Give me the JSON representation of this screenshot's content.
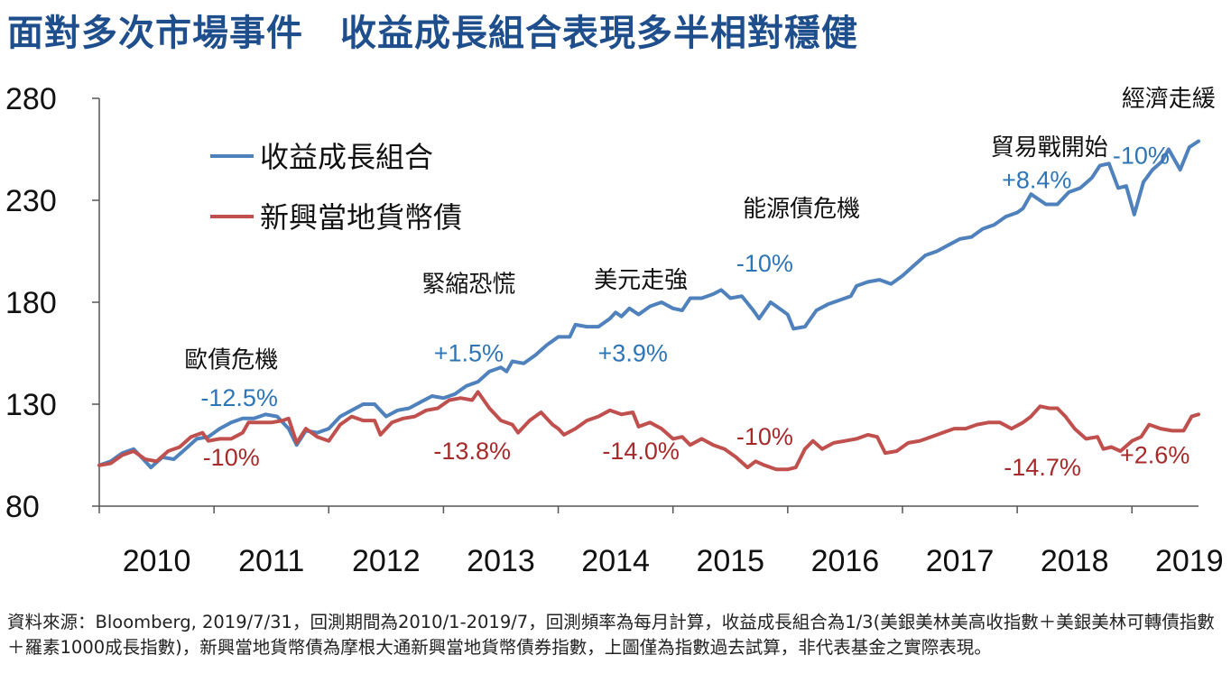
{
  "title": "面對多次市場事件　收益成長組合表現多半相對穩健",
  "footnote": "資料來源：Bloomberg, 2019/7/31，回測期間為2010/1-2019/7，回測頻率為每月計算，收益成長組合為1/3(美銀美林美高收指數＋美銀美林可轉債指數＋羅素1000成長指數)，新興當地貨幣債為摩根大通新興當地貨幣債券指數，上圖僅為指數過去試算，非代表基金之實際表現。",
  "chart_data": {
    "type": "line",
    "title": "面對多次市場事件　收益成長組合表現多半相對穩健",
    "xlabel": "",
    "ylabel": "",
    "xlim": [
      2010.0,
      2019.58
    ],
    "ylim": [
      80,
      280
    ],
    "yticks": [
      280,
      230,
      180,
      130,
      80
    ],
    "xticks": [
      "2010",
      "2011",
      "2012",
      "2013",
      "2014",
      "2015",
      "2016",
      "2017",
      "2018",
      "2019"
    ],
    "grid": false,
    "legend_position": "top-left",
    "series": [
      {
        "name": "收益成長組合",
        "color": "#4f81bd",
        "points": [
          [
            2010.0,
            100
          ],
          [
            2010.1,
            102
          ],
          [
            2010.2,
            106
          ],
          [
            2010.3,
            108
          ],
          [
            2010.4,
            102
          ],
          [
            2010.45,
            99
          ],
          [
            2010.55,
            104
          ],
          [
            2010.65,
            103
          ],
          [
            2010.75,
            108
          ],
          [
            2010.85,
            113
          ],
          [
            2010.95,
            114
          ],
          [
            2011.05,
            118
          ],
          [
            2011.15,
            121
          ],
          [
            2011.25,
            123
          ],
          [
            2011.35,
            123
          ],
          [
            2011.45,
            125
          ],
          [
            2011.55,
            124
          ],
          [
            2011.65,
            118
          ],
          [
            2011.72,
            110
          ],
          [
            2011.8,
            117
          ],
          [
            2011.9,
            116
          ],
          [
            2012.0,
            118
          ],
          [
            2012.1,
            124
          ],
          [
            2012.2,
            127
          ],
          [
            2012.3,
            130
          ],
          [
            2012.4,
            130
          ],
          [
            2012.5,
            124
          ],
          [
            2012.6,
            127
          ],
          [
            2012.7,
            128
          ],
          [
            2012.8,
            131
          ],
          [
            2012.9,
            134
          ],
          [
            2013.0,
            133
          ],
          [
            2013.1,
            135
          ],
          [
            2013.2,
            139
          ],
          [
            2013.3,
            141
          ],
          [
            2013.4,
            146
          ],
          [
            2013.5,
            148
          ],
          [
            2013.55,
            146
          ],
          [
            2013.6,
            151
          ],
          [
            2013.7,
            150
          ],
          [
            2013.8,
            154
          ],
          [
            2013.9,
            159
          ],
          [
            2014.0,
            163
          ],
          [
            2014.1,
            163
          ],
          [
            2014.15,
            169
          ],
          [
            2014.25,
            168
          ],
          [
            2014.35,
            168
          ],
          [
            2014.45,
            172
          ],
          [
            2014.5,
            175
          ],
          [
            2014.55,
            173
          ],
          [
            2014.62,
            177
          ],
          [
            2014.7,
            174
          ],
          [
            2014.8,
            178
          ],
          [
            2014.9,
            180
          ],
          [
            2015.0,
            177
          ],
          [
            2015.08,
            176
          ],
          [
            2015.15,
            182
          ],
          [
            2015.25,
            182
          ],
          [
            2015.35,
            184
          ],
          [
            2015.42,
            186
          ],
          [
            2015.5,
            182
          ],
          [
            2015.6,
            183
          ],
          [
            2015.7,
            176
          ],
          [
            2015.75,
            172
          ],
          [
            2015.85,
            180
          ],
          [
            2015.95,
            176
          ],
          [
            2016.0,
            174
          ],
          [
            2016.05,
            167
          ],
          [
            2016.15,
            168
          ],
          [
            2016.25,
            176
          ],
          [
            2016.35,
            179
          ],
          [
            2016.45,
            181
          ],
          [
            2016.55,
            183
          ],
          [
            2016.6,
            188
          ],
          [
            2016.7,
            190
          ],
          [
            2016.8,
            191
          ],
          [
            2016.9,
            189
          ],
          [
            2017.0,
            193
          ],
          [
            2017.1,
            198
          ],
          [
            2017.2,
            203
          ],
          [
            2017.3,
            205
          ],
          [
            2017.4,
            208
          ],
          [
            2017.5,
            211
          ],
          [
            2017.6,
            212
          ],
          [
            2017.7,
            216
          ],
          [
            2017.8,
            218
          ],
          [
            2017.9,
            222
          ],
          [
            2018.0,
            224
          ],
          [
            2018.05,
            226
          ],
          [
            2018.12,
            233
          ],
          [
            2018.25,
            228
          ],
          [
            2018.35,
            228
          ],
          [
            2018.45,
            234
          ],
          [
            2018.55,
            236
          ],
          [
            2018.65,
            241
          ],
          [
            2018.72,
            247
          ],
          [
            2018.8,
            248
          ],
          [
            2018.88,
            236
          ],
          [
            2018.95,
            237
          ],
          [
            2019.02,
            223
          ],
          [
            2019.1,
            239
          ],
          [
            2019.18,
            245
          ],
          [
            2019.26,
            249
          ],
          [
            2019.32,
            255
          ],
          [
            2019.42,
            245
          ],
          [
            2019.5,
            256
          ],
          [
            2019.58,
            259
          ]
        ]
      },
      {
        "name": "新興當地貨幣債",
        "color": "#c0504d",
        "points": [
          [
            2010.0,
            100
          ],
          [
            2010.1,
            101
          ],
          [
            2010.2,
            105
          ],
          [
            2010.3,
            107
          ],
          [
            2010.4,
            103
          ],
          [
            2010.5,
            102
          ],
          [
            2010.6,
            107
          ],
          [
            2010.7,
            109
          ],
          [
            2010.8,
            114
          ],
          [
            2010.9,
            116
          ],
          [
            2010.95,
            112
          ],
          [
            2011.05,
            113
          ],
          [
            2011.15,
            113
          ],
          [
            2011.25,
            116
          ],
          [
            2011.3,
            121
          ],
          [
            2011.4,
            121
          ],
          [
            2011.5,
            121
          ],
          [
            2011.6,
            122
          ],
          [
            2011.65,
            123
          ],
          [
            2011.72,
            111
          ],
          [
            2011.8,
            118
          ],
          [
            2011.9,
            114
          ],
          [
            2012.0,
            112
          ],
          [
            2012.1,
            120
          ],
          [
            2012.2,
            124
          ],
          [
            2012.3,
            122
          ],
          [
            2012.4,
            122
          ],
          [
            2012.45,
            115
          ],
          [
            2012.55,
            121
          ],
          [
            2012.65,
            123
          ],
          [
            2012.75,
            124
          ],
          [
            2012.85,
            127
          ],
          [
            2012.95,
            128
          ],
          [
            2013.05,
            132
          ],
          [
            2013.15,
            133
          ],
          [
            2013.25,
            132
          ],
          [
            2013.3,
            136
          ],
          [
            2013.4,
            128
          ],
          [
            2013.5,
            122
          ],
          [
            2013.6,
            120
          ],
          [
            2013.65,
            116
          ],
          [
            2013.75,
            122
          ],
          [
            2013.85,
            126
          ],
          [
            2013.95,
            120
          ],
          [
            2014.0,
            118
          ],
          [
            2014.05,
            115
          ],
          [
            2014.15,
            118
          ],
          [
            2014.25,
            122
          ],
          [
            2014.35,
            124
          ],
          [
            2014.45,
            127
          ],
          [
            2014.55,
            125
          ],
          [
            2014.65,
            126
          ],
          [
            2014.7,
            119
          ],
          [
            2014.8,
            121
          ],
          [
            2014.9,
            118
          ],
          [
            2015.0,
            113
          ],
          [
            2015.08,
            114
          ],
          [
            2015.15,
            110
          ],
          [
            2015.25,
            113
          ],
          [
            2015.35,
            110
          ],
          [
            2015.45,
            108
          ],
          [
            2015.55,
            104
          ],
          [
            2015.65,
            99
          ],
          [
            2015.72,
            102
          ],
          [
            2015.8,
            100
          ],
          [
            2015.9,
            98
          ],
          [
            2016.0,
            98
          ],
          [
            2016.07,
            99
          ],
          [
            2016.15,
            108
          ],
          [
            2016.22,
            112
          ],
          [
            2016.3,
            108
          ],
          [
            2016.4,
            111
          ],
          [
            2016.5,
            112
          ],
          [
            2016.6,
            113
          ],
          [
            2016.7,
            115
          ],
          [
            2016.78,
            114
          ],
          [
            2016.85,
            106
          ],
          [
            2016.95,
            107
          ],
          [
            2017.05,
            111
          ],
          [
            2017.15,
            112
          ],
          [
            2017.25,
            114
          ],
          [
            2017.35,
            116
          ],
          [
            2017.45,
            118
          ],
          [
            2017.55,
            118
          ],
          [
            2017.65,
            120
          ],
          [
            2017.75,
            121
          ],
          [
            2017.85,
            121
          ],
          [
            2017.95,
            118
          ],
          [
            2018.05,
            121
          ],
          [
            2018.12,
            124
          ],
          [
            2018.2,
            129
          ],
          [
            2018.28,
            128
          ],
          [
            2018.35,
            128
          ],
          [
            2018.42,
            124
          ],
          [
            2018.5,
            118
          ],
          [
            2018.6,
            113
          ],
          [
            2018.7,
            114
          ],
          [
            2018.75,
            108
          ],
          [
            2018.82,
            109
          ],
          [
            2018.9,
            107
          ],
          [
            2019.0,
            112
          ],
          [
            2019.08,
            114
          ],
          [
            2019.15,
            120
          ],
          [
            2019.25,
            118
          ],
          [
            2019.35,
            117
          ],
          [
            2019.45,
            117
          ],
          [
            2019.52,
            124
          ],
          [
            2019.58,
            125
          ]
        ]
      }
    ],
    "annotations": [
      {
        "text": "歐債危機",
        "x": 2011.15,
        "y": 152,
        "kind": "event"
      },
      {
        "text": "-12.5%",
        "x": 2011.22,
        "y": 133,
        "kind": "blue"
      },
      {
        "text": "-10%",
        "x": 2011.15,
        "y": 104,
        "kind": "red"
      },
      {
        "text": "緊縮恐慌",
        "x": 2013.22,
        "y": 189,
        "kind": "event"
      },
      {
        "text": "+1.5%",
        "x": 2013.22,
        "y": 155,
        "kind": "blue"
      },
      {
        "text": "-13.8%",
        "x": 2013.25,
        "y": 107,
        "kind": "red"
      },
      {
        "text": "美元走強",
        "x": 2014.72,
        "y": 191,
        "kind": "event"
      },
      {
        "text": "+3.9%",
        "x": 2014.65,
        "y": 155,
        "kind": "blue"
      },
      {
        "text": "-14.0%",
        "x": 2014.72,
        "y": 107,
        "kind": "red"
      },
      {
        "text": "能源債危機",
        "x": 2016.12,
        "y": 226,
        "kind": "event"
      },
      {
        "text": "-10%",
        "x": 2015.8,
        "y": 199,
        "kind": "blue"
      },
      {
        "text": "-10%",
        "x": 2015.8,
        "y": 114,
        "kind": "red"
      },
      {
        "text": "貿易戰開始",
        "x": 2018.28,
        "y": 256,
        "kind": "event"
      },
      {
        "text": "+8.4%",
        "x": 2018.17,
        "y": 240,
        "kind": "blue"
      },
      {
        "text": "-14.7%",
        "x": 2018.22,
        "y": 99,
        "kind": "red"
      },
      {
        "text": "經濟走緩",
        "x": 2019.32,
        "y": 280,
        "kind": "event"
      },
      {
        "text": "-10%",
        "x": 2019.08,
        "y": 252,
        "kind": "blue"
      },
      {
        "text": "+2.6%",
        "x": 2019.2,
        "y": 105,
        "kind": "red"
      }
    ]
  }
}
